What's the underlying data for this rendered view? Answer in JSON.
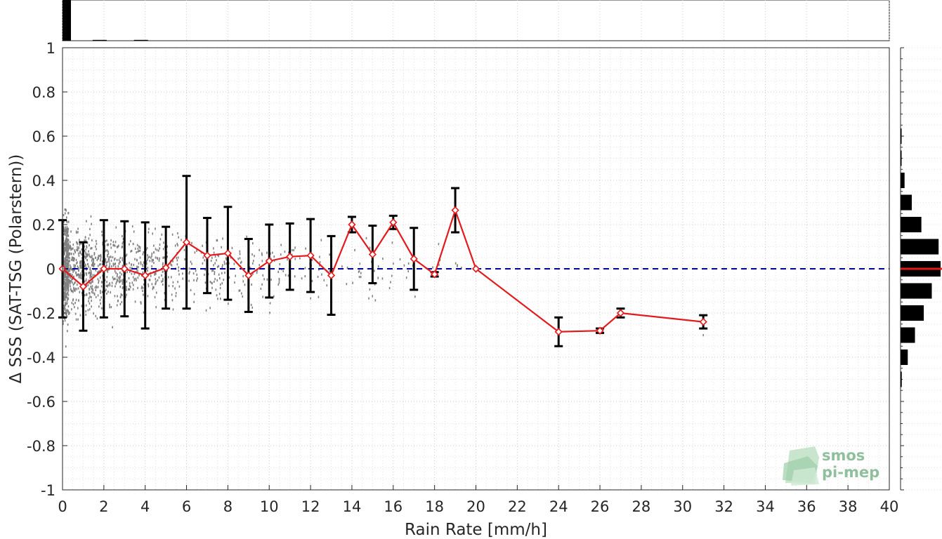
{
  "chart_data": {
    "type": "line",
    "xlabel": "Rain Rate [mm/h]",
    "ylabel": "Δ SSS (SAT-TSG (Polarstern))",
    "xlim": [
      0,
      40
    ],
    "ylim": [
      -1,
      1
    ],
    "x_ticks": [
      0,
      2,
      4,
      6,
      8,
      10,
      12,
      14,
      16,
      18,
      20,
      22,
      24,
      26,
      28,
      30,
      32,
      34,
      36,
      38,
      40
    ],
    "y_ticks": [
      -1,
      -0.8,
      -0.6,
      -0.4,
      -0.2,
      0,
      0.2,
      0.4,
      0.6,
      0.8,
      1
    ],
    "x_tick_labels": [
      "0",
      "2",
      "4",
      "6",
      "8",
      "10",
      "12",
      "14",
      "16",
      "18",
      "20",
      "22",
      "24",
      "26",
      "28",
      "30",
      "32",
      "34",
      "36",
      "38",
      "40"
    ],
    "y_tick_labels": [
      "-1",
      "-0.8",
      "-0.6",
      "-0.4",
      "-0.2",
      "0",
      "0.2",
      "0.4",
      "0.6",
      "0.8",
      "1"
    ],
    "grid": true,
    "reference_line": {
      "y": 0,
      "color": "#0000a0",
      "style": "dashed"
    },
    "series": [
      {
        "type": "line",
        "color": "#e31a1c",
        "marker": "diamond",
        "x": [
          0,
          1,
          2,
          3,
          4,
          5,
          6,
          7,
          8,
          9,
          10,
          11,
          12,
          13,
          14,
          15,
          16,
          17,
          18,
          19,
          20,
          24,
          26,
          27,
          31
        ],
        "y": [
          0.0,
          -0.08,
          0.0,
          0.0,
          -0.03,
          0.005,
          0.12,
          0.06,
          0.07,
          -0.03,
          0.035,
          0.055,
          0.06,
          -0.03,
          0.2,
          0.065,
          0.21,
          0.045,
          -0.025,
          0.265,
          0.0,
          -0.285,
          -0.28,
          -0.2,
          -0.24
        ],
        "error": [
          0.22,
          0.2,
          0.22,
          0.215,
          0.24,
          0.185,
          0.3,
          0.17,
          0.21,
          0.165,
          0.165,
          0.15,
          0.165,
          0.178,
          0.035,
          0.13,
          0.03,
          0.14,
          0.01,
          0.1,
          0.0,
          0.065,
          0.01,
          0.02,
          0.03
        ],
        "error_color": "#000000"
      }
    ],
    "scatter_color": "#808080",
    "top_histogram": {
      "bin_edges_x": [
        0,
        2,
        4
      ],
      "bars": [
        1.0,
        0.02,
        0.02
      ]
    },
    "right_histogram": {
      "bin_centers_y": [
        0.6,
        0.5,
        0.4,
        0.3,
        0.2,
        0.1,
        0.0,
        -0.1,
        -0.2,
        -0.3,
        -0.4,
        -0.5
      ],
      "values": [
        0.02,
        0.02,
        0.1,
        0.28,
        0.52,
        0.95,
        1.0,
        0.78,
        0.58,
        0.36,
        0.18,
        0.03
      ],
      "median_line_color": "#e31a1c"
    }
  },
  "logo": {
    "line1": "smos",
    "line2": "pi-mep"
  }
}
